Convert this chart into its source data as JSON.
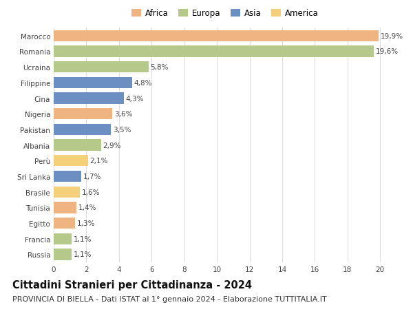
{
  "countries": [
    "Russia",
    "Francia",
    "Egitto",
    "Tunisia",
    "Brasile",
    "Sri Lanka",
    "Perù",
    "Albania",
    "Pakistan",
    "Nigeria",
    "Cina",
    "Filippine",
    "Ucraina",
    "Romania",
    "Marocco"
  ],
  "values": [
    1.1,
    1.1,
    1.3,
    1.4,
    1.6,
    1.7,
    2.1,
    2.9,
    3.5,
    3.6,
    4.3,
    4.8,
    5.8,
    19.6,
    19.9
  ],
  "labels": [
    "1,1%",
    "1,1%",
    "1,3%",
    "1,4%",
    "1,6%",
    "1,7%",
    "2,1%",
    "2,9%",
    "3,5%",
    "3,6%",
    "4,3%",
    "4,8%",
    "5,8%",
    "19,6%",
    "19,9%"
  ],
  "continents": [
    "Europa",
    "Europa",
    "Africa",
    "Africa",
    "America",
    "Asia",
    "America",
    "Europa",
    "Asia",
    "Africa",
    "Asia",
    "Asia",
    "Europa",
    "Europa",
    "Africa"
  ],
  "colors": {
    "Africa": "#F0B482",
    "Europa": "#B5C98A",
    "Asia": "#6A8FC0",
    "America": "#F5D07A"
  },
  "legend_order": [
    "Africa",
    "Europa",
    "Asia",
    "America"
  ],
  "title": "Cittadini Stranieri per Cittadinanza - 2024",
  "subtitle": "PROVINCIA DI BIELLA - Dati ISTAT al 1° gennaio 2024 - Elaborazione TUTTITALIA.IT",
  "xlim": [
    0,
    21
  ],
  "xticks": [
    0,
    2,
    4,
    6,
    8,
    10,
    12,
    14,
    16,
    18,
    20
  ],
  "background_color": "#ffffff",
  "grid_color": "#dddddd",
  "bar_height": 0.72,
  "title_fontsize": 10.5,
  "subtitle_fontsize": 8,
  "label_fontsize": 7.5,
  "tick_fontsize": 7.5,
  "legend_fontsize": 8.5
}
